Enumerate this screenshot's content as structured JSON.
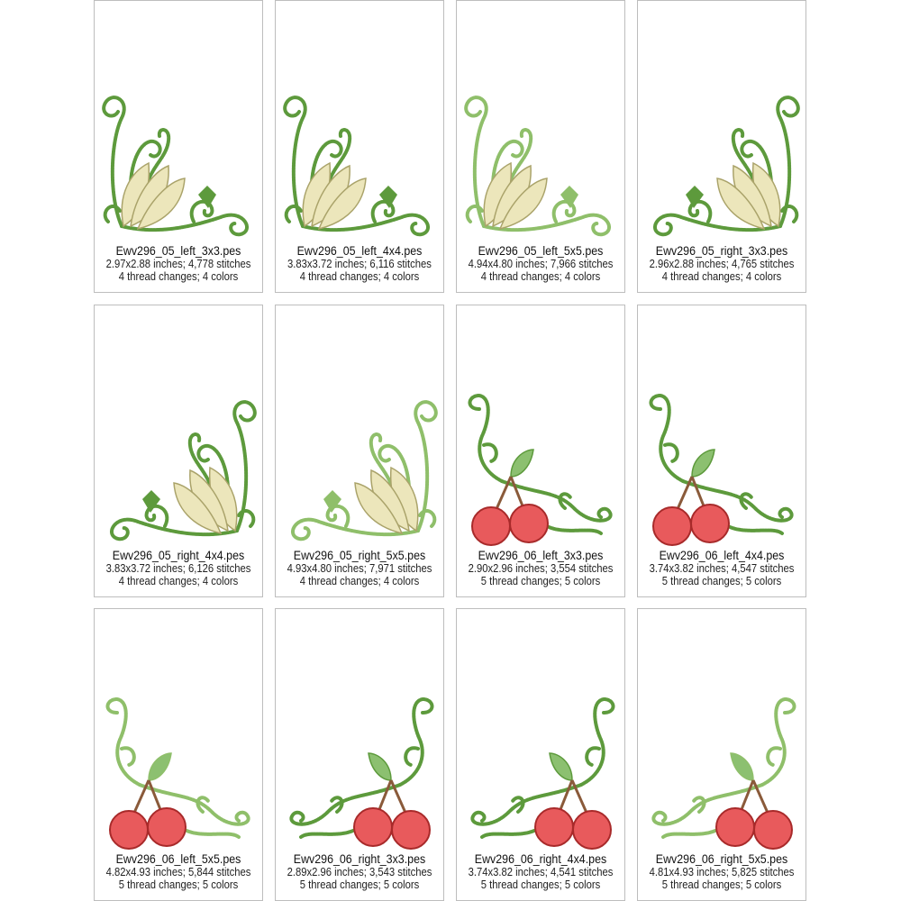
{
  "colors": {
    "swirl_green": "#5d9a3c",
    "swirl_green_light": "#8fbf6a",
    "leaf_fill": "#ece6bb",
    "leaf_stroke": "#aaa36a",
    "cherry_fill": "#e85a5c",
    "cherry_stroke": "#a82a2a",
    "stem_brown": "#8a5a3a",
    "card_border": "#bdbdbd"
  },
  "designs": [
    {
      "name": "Ewv296_05_left_3x3.pes",
      "size": "2.97x2.88 inches; 4,778 stitches",
      "threads": "4 thread changes; 4 colors",
      "motif": "leaf",
      "orientation": "left"
    },
    {
      "name": "Ewv296_05_left_4x4.pes",
      "size": "3.83x3.72 inches; 6,116 stitches",
      "threads": "4 thread changes; 4 colors",
      "motif": "leaf",
      "orientation": "left"
    },
    {
      "name": "Ewv296_05_left_5x5.pes",
      "size": "4.94x4.80 inches; 7,966 stitches",
      "threads": "4 thread changes; 4 colors",
      "motif": "leaf",
      "orientation": "left",
      "light": true
    },
    {
      "name": "Ewv296_05_right_3x3.pes",
      "size": "2.96x2.88 inches; 4,765 stitches",
      "threads": "4 thread changes; 4 colors",
      "motif": "leaf",
      "orientation": "right"
    },
    {
      "name": "Ewv296_05_right_4x4.pes",
      "size": "3.83x3.72 inches; 6,126 stitches",
      "threads": "4 thread changes; 4 colors",
      "motif": "leaf",
      "orientation": "right"
    },
    {
      "name": "Ewv296_05_right_5x5.pes",
      "size": "4.93x4.80 inches; 7,971 stitches",
      "threads": "4 thread changes; 4 colors",
      "motif": "leaf",
      "orientation": "right",
      "light": true
    },
    {
      "name": "Ewv296_06_left_3x3.pes",
      "size": "2.90x2.96 inches; 3,554 stitches",
      "threads": "5 thread changes; 5 colors",
      "motif": "cherry",
      "orientation": "left"
    },
    {
      "name": "Ewv296_06_left_4x4.pes",
      "size": "3.74x3.82 inches; 4,547 stitches",
      "threads": "5 thread changes; 5 colors",
      "motif": "cherry",
      "orientation": "left"
    },
    {
      "name": "Ewv296_06_left_5x5.pes",
      "size": "4.82x4.93 inches; 5,844 stitches",
      "threads": "5 thread changes; 5 colors",
      "motif": "cherry",
      "orientation": "left",
      "light": true
    },
    {
      "name": "Ewv296_06_right_3x3.pes",
      "size": "2.89x2.96 inches; 3,543 stitches",
      "threads": "5 thread changes; 5 colors",
      "motif": "cherry",
      "orientation": "right"
    },
    {
      "name": "Ewv296_06_right_4x4.pes",
      "size": "3.74x3.82 inches; 4,541 stitches",
      "threads": "5 thread changes; 5 colors",
      "motif": "cherry",
      "orientation": "right"
    },
    {
      "name": "Ewv296_06_right_5x5.pes",
      "size": "4.81x4.93 inches; 5,825 stitches",
      "threads": "5 thread changes; 5 colors",
      "motif": "cherry",
      "orientation": "right",
      "light": true
    }
  ]
}
